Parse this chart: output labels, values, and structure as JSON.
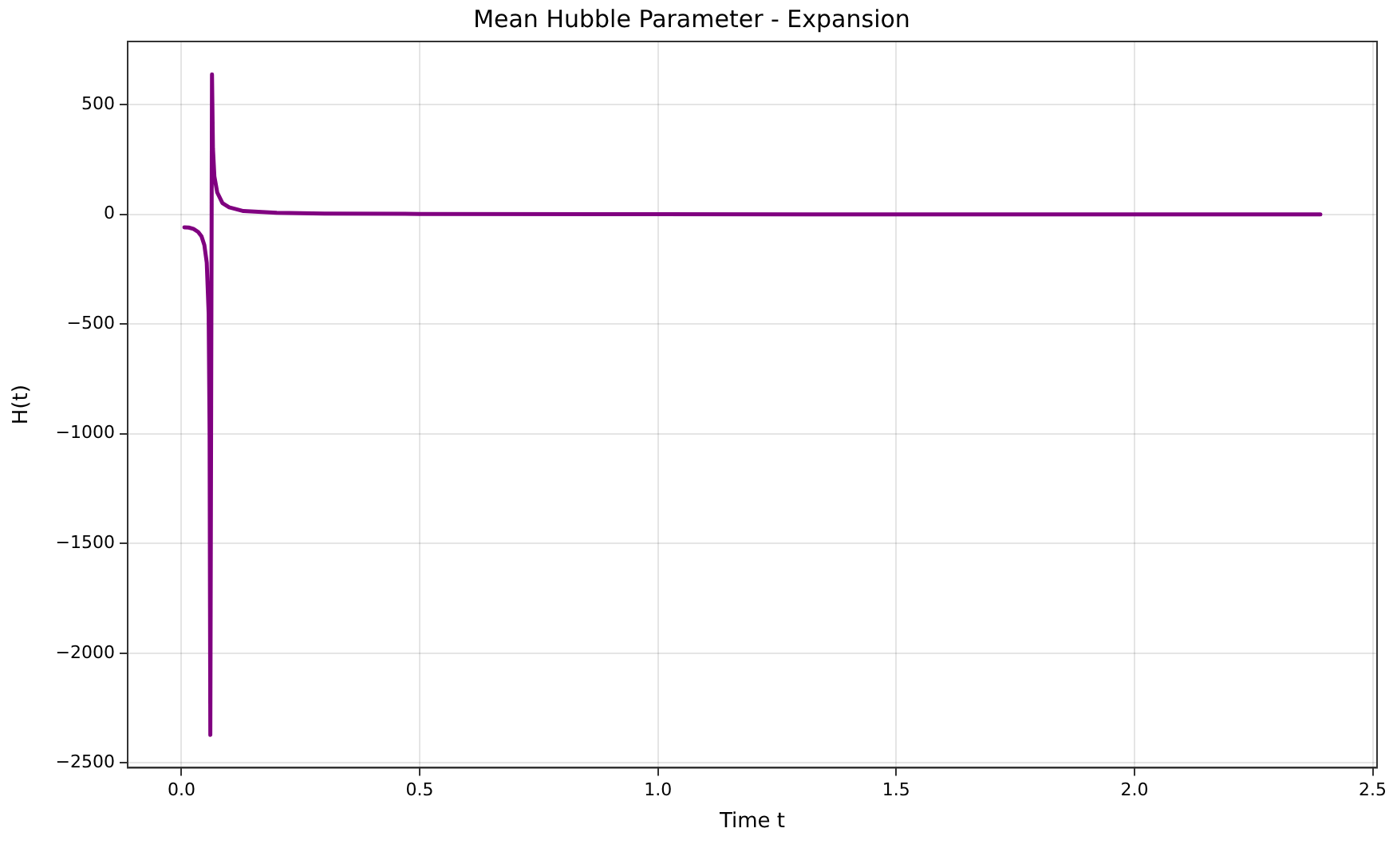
{
  "chart_data": {
    "type": "line",
    "title": "Mean Hubble Parameter - Expansion",
    "xlabel": "Time t",
    "ylabel": "H(t)",
    "series": [
      {
        "color": "#800080",
        "x": [
          0.006,
          0.015,
          0.025,
          0.035,
          0.042,
          0.048,
          0.053,
          0.057,
          0.059,
          0.0605,
          0.064,
          0.066,
          0.069,
          0.075,
          0.086,
          0.1,
          0.13,
          0.2,
          0.3,
          0.5,
          1,
          1.5,
          2.39
        ],
        "values": [
          -59,
          -60,
          -66,
          -80,
          -100,
          -140,
          -220,
          -450,
          -1000,
          -2372,
          638,
          300,
          173,
          100,
          51,
          32,
          15,
          7,
          4,
          2,
          1,
          0,
          0
        ]
      }
    ],
    "xlim": [
      -0.113,
      2.509
    ],
    "xticks": [
      {
        "value": 0,
        "label": "0.0"
      },
      0.5,
      {
        "value": 1,
        "label": "1.0"
      },
      1.5,
      {
        "value": 2,
        "label": "2.0"
      },
      2.5
    ],
    "ylim": [
      -2522,
      788
    ],
    "yticks": [
      -2500,
      -2000,
      -1500,
      -1000,
      -500,
      0,
      500
    ],
    "grid": true,
    "legend": false,
    "marker": "none",
    "line_style": "solid"
  }
}
